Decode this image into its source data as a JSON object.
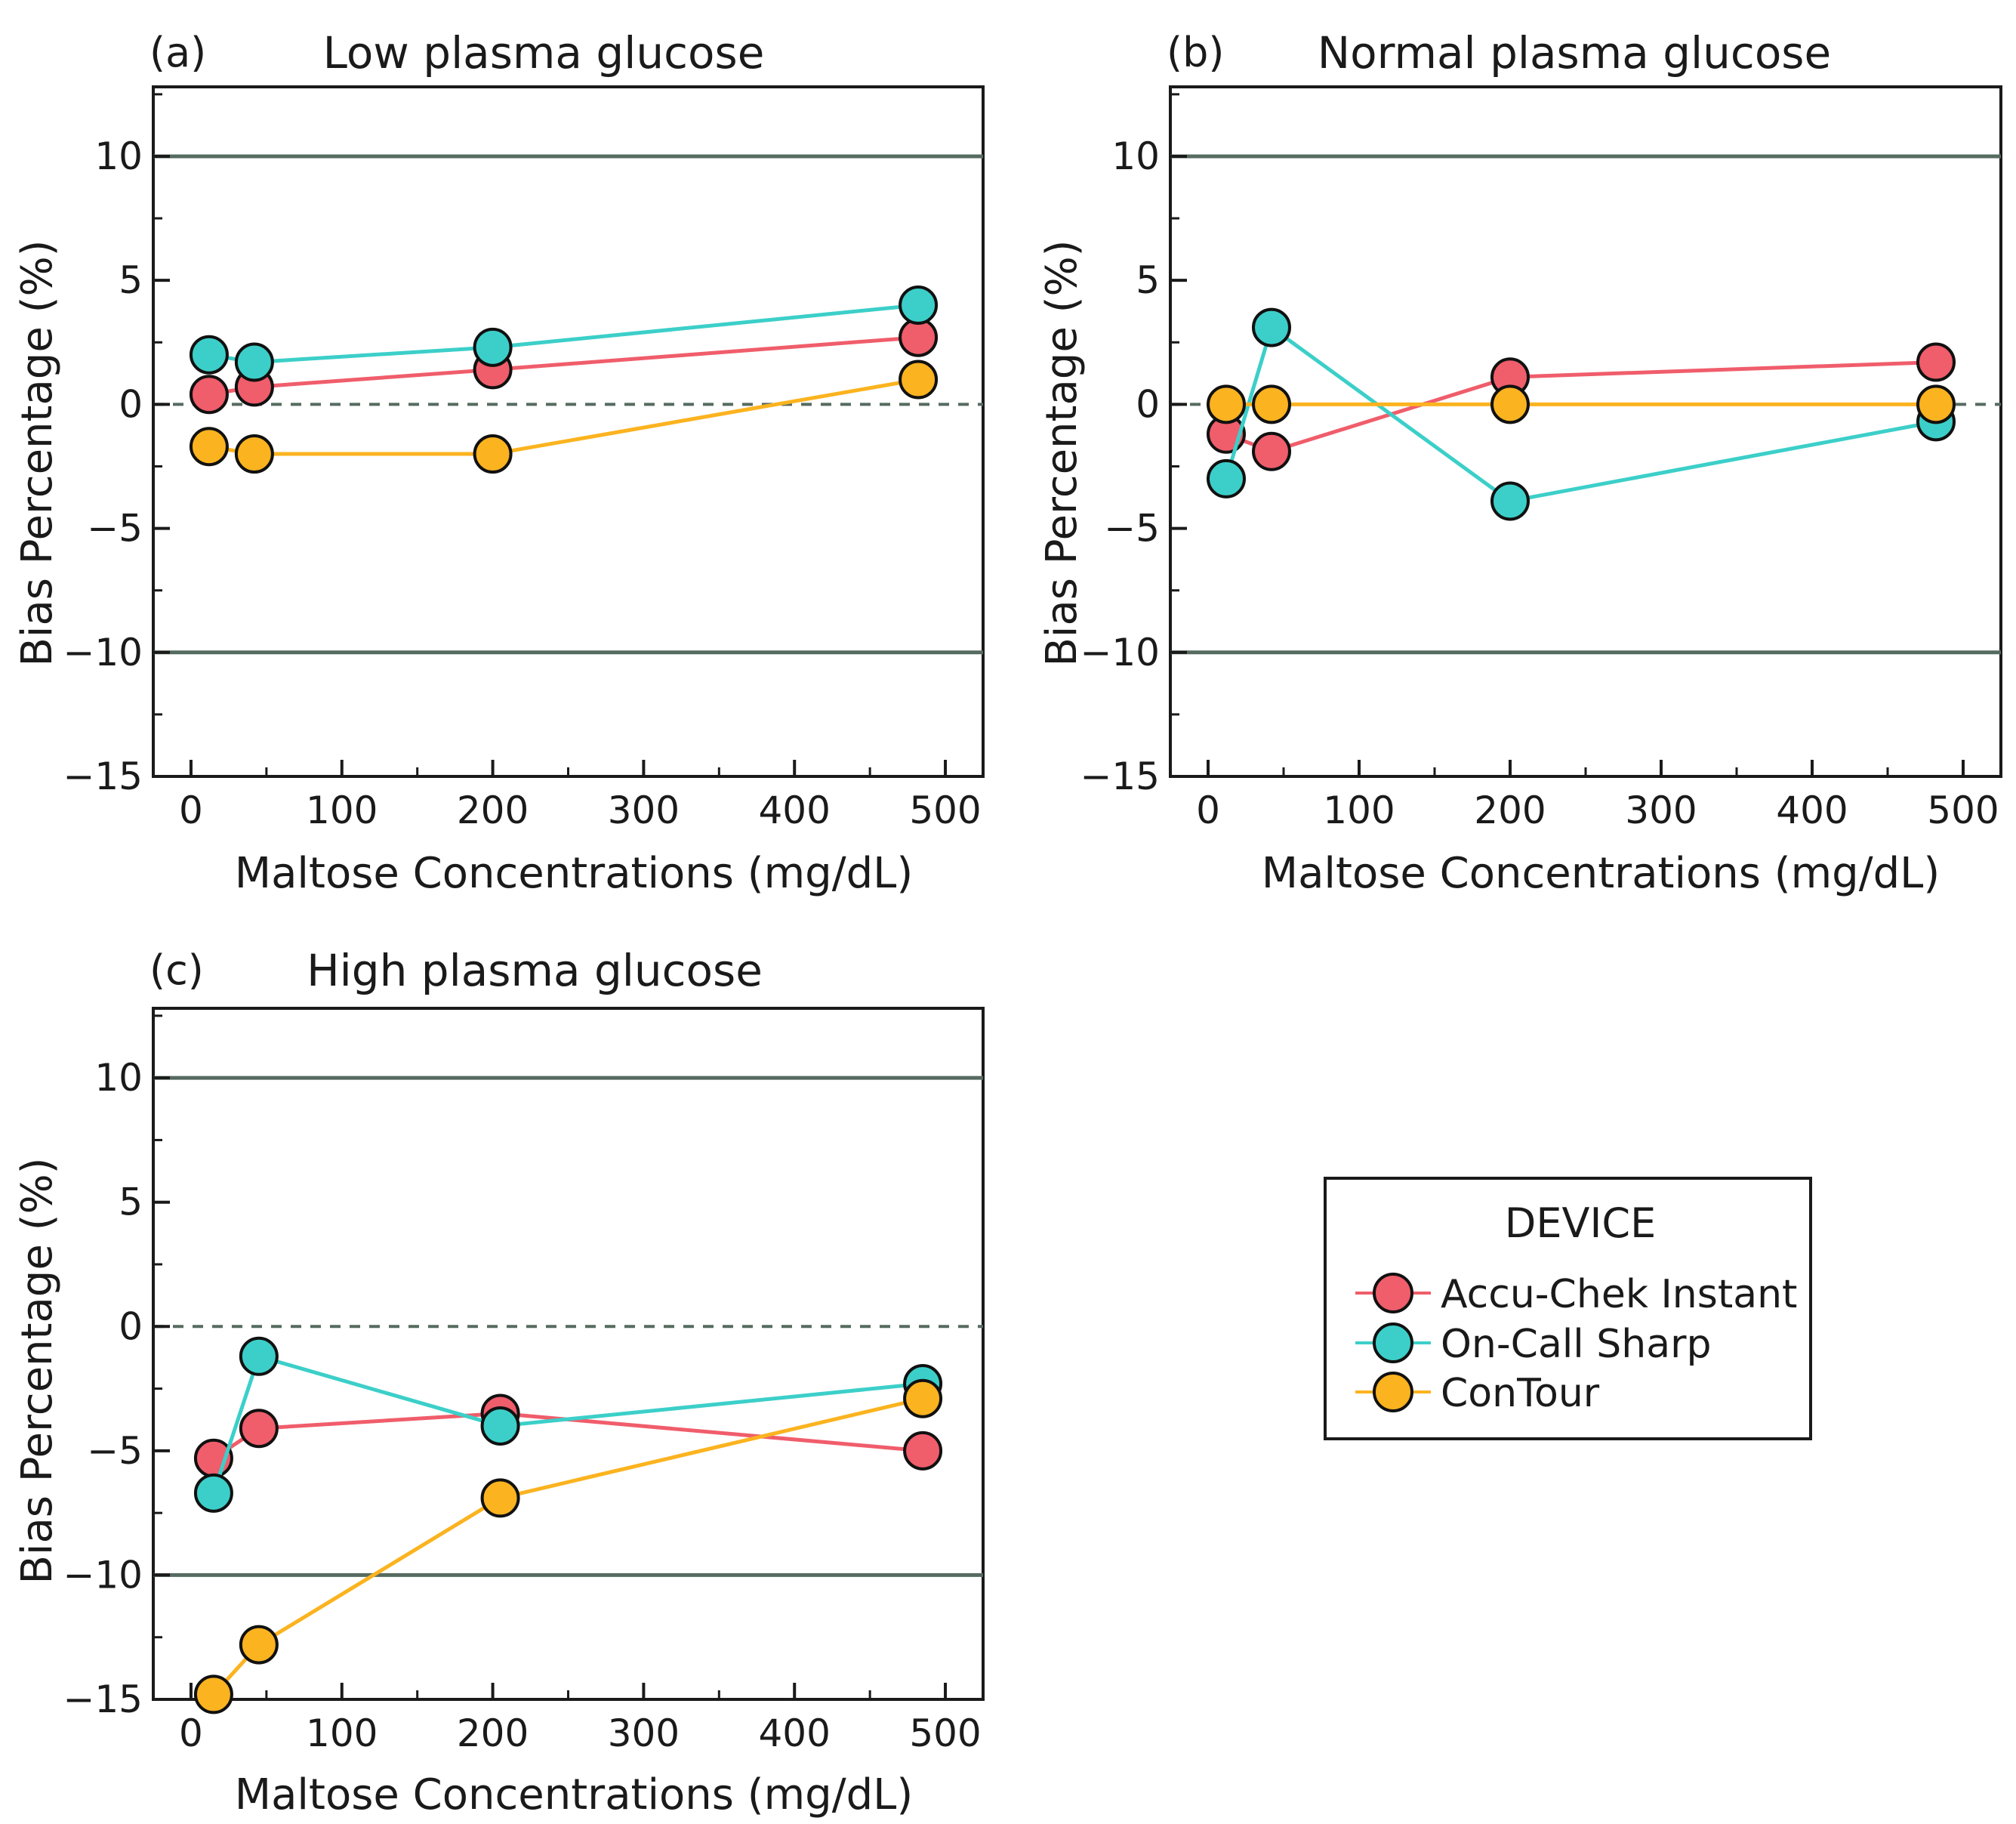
{
  "chart_data": [
    {
      "type": "line",
      "panel_label": "(a)",
      "title": "Low plasma glucose",
      "xlabel": "Maltose Concentrations (mg/dL)",
      "ylabel": "Bias Percentage (%)",
      "xlim": [
        -25,
        525
      ],
      "ylim": [
        -15,
        12.8
      ],
      "xticks": [
        0,
        100,
        200,
        300,
        400,
        500
      ],
      "yticks": [
        -15,
        -10,
        -5,
        0,
        5,
        10
      ],
      "reference_lines": [
        10,
        -10
      ],
      "zero_line": 0,
      "series": [
        {
          "name": "Accu-Chek Instant",
          "x": [
            12,
            42,
            200,
            482
          ],
          "y": [
            0.4,
            0.7,
            1.4,
            2.7
          ]
        },
        {
          "name": "On-Call Sharp",
          "x": [
            12,
            42,
            200,
            482
          ],
          "y": [
            2.0,
            1.7,
            2.3,
            4.0
          ]
        },
        {
          "name": "ConTour",
          "x": [
            12,
            42,
            200,
            482
          ],
          "y": [
            -1.7,
            -2.0,
            -2.0,
            1.0
          ]
        }
      ]
    },
    {
      "type": "line",
      "panel_label": "(b)",
      "title": "Normal plasma glucose",
      "xlabel": "Maltose Concentrations (mg/dL)",
      "ylabel": "Bias Percentage (%)",
      "xlim": [
        -25,
        525
      ],
      "ylim": [
        -15,
        12.8
      ],
      "xticks": [
        0,
        100,
        200,
        300,
        400,
        500
      ],
      "yticks": [
        -15,
        -10,
        -5,
        0,
        5,
        10
      ],
      "reference_lines": [
        10,
        -10
      ],
      "zero_line": 0,
      "series": [
        {
          "name": "Accu-Chek Instant",
          "x": [
            12,
            42,
            200,
            482
          ],
          "y": [
            -1.2,
            -1.9,
            1.1,
            1.7
          ]
        },
        {
          "name": "On-Call Sharp",
          "x": [
            12,
            42,
            200,
            482
          ],
          "y": [
            -3.0,
            3.1,
            -3.9,
            -0.7
          ]
        },
        {
          "name": "ConTour",
          "x": [
            12,
            42,
            200,
            482
          ],
          "y": [
            0.0,
            0.0,
            0.0,
            0.0
          ]
        }
      ]
    },
    {
      "type": "line",
      "panel_label": "(c)",
      "title": "High plasma glucose",
      "xlabel": "Maltose Concentrations (mg/dL)",
      "ylabel": "Bias Percentage (%)",
      "xlim": [
        -25,
        525
      ],
      "ylim": [
        -15,
        12.8
      ],
      "xticks": [
        0,
        100,
        200,
        300,
        400,
        500
      ],
      "yticks": [
        -15,
        -10,
        -5,
        0,
        5,
        10
      ],
      "reference_lines": [
        10,
        -10
      ],
      "zero_line": 0,
      "series": [
        {
          "name": "Accu-Chek Instant",
          "x": [
            15,
            45,
            205,
            485
          ],
          "y": [
            -5.3,
            -4.1,
            -3.5,
            -5.0
          ]
        },
        {
          "name": "On-Call Sharp",
          "x": [
            15,
            45,
            205,
            485
          ],
          "y": [
            -6.7,
            -1.2,
            -4.0,
            -2.3
          ]
        },
        {
          "name": "ConTour",
          "x": [
            15,
            45,
            205,
            485
          ],
          "y": [
            -14.8,
            -12.8,
            -6.9,
            -2.9
          ]
        }
      ]
    }
  ],
  "legend": {
    "title": "DEVICE",
    "items": [
      {
        "label": "Accu-Chek Instant",
        "color": "#f05d6b"
      },
      {
        "label": "On-Call Sharp",
        "color": "#3ccfc9"
      },
      {
        "label": "ConTour",
        "color": "#fbb31f"
      }
    ]
  },
  "colors": {
    "Accu-Chek Instant": "#f05d6b",
    "On-Call Sharp": "#3ccfc9",
    "ConTour": "#fbb31f",
    "reference_line": "#566b60",
    "zero_line": "#566b60",
    "axis": "#1a1a1a"
  }
}
